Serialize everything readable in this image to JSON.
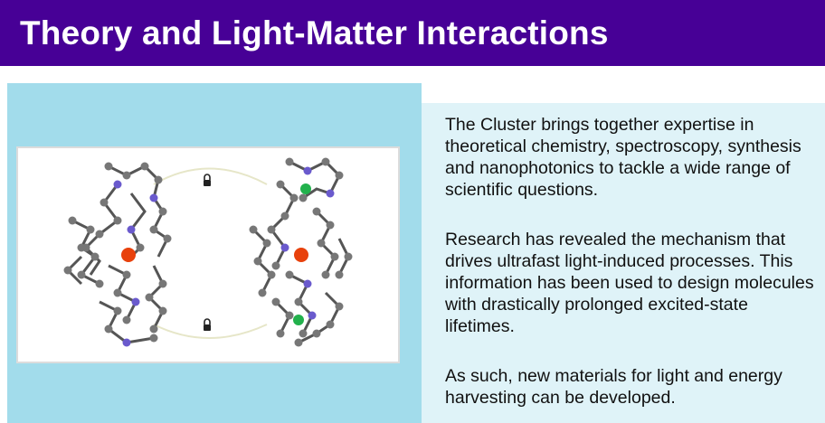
{
  "header": {
    "title": "Theory and Light-Matter Interactions",
    "background": "#470096"
  },
  "figure": {
    "description_icon": "molecular-structure-illustration",
    "lock_icons": [
      "padlock-icon",
      "padlock-icon"
    ],
    "panel_color": "#a2dceb"
  },
  "body": {
    "paragraphs": [
      "The Cluster brings together expertise in theoretical chemistry, spectroscopy, synthesis and nanophotonics to tackle a wide range of scientific questions.",
      "Research has revealed the mechanism that drives ultrafast light-induced processes. This information has been used to design molecules with drastically prolonged excited-state lifetimes.",
      "As such, new materials for light and energy harvesting can be developed."
    ],
    "panel_color": "#dff3f8"
  }
}
